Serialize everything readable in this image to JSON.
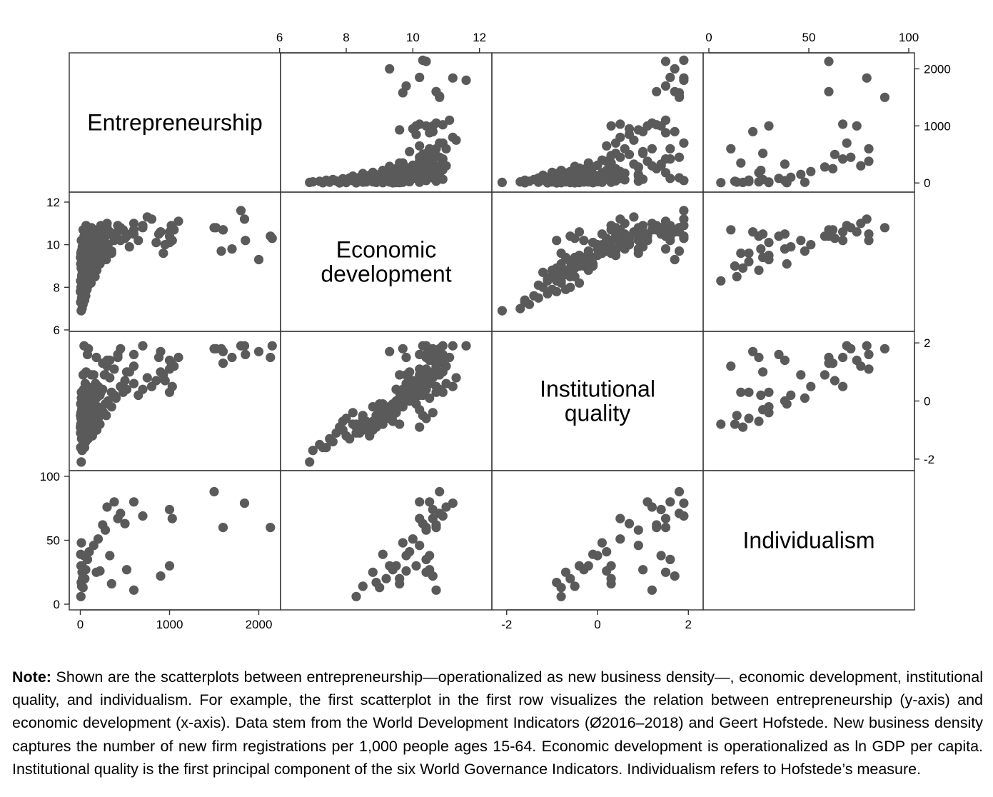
{
  "chart_data": {
    "type": "scatter-matrix",
    "variables": [
      "Entrepreneurship",
      "Economic development",
      "Institutional quality",
      "Individualism"
    ],
    "diagonal_labels": [
      [
        "Entrepreneurship"
      ],
      [
        "Economic",
        "development"
      ],
      [
        "Institutional",
        "quality"
      ],
      [
        "Individualism"
      ]
    ],
    "ranges": {
      "Entrepreneurship": [
        -60,
        2180
      ],
      "Economic development": [
        6.2,
        12.2
      ],
      "Institutional quality": [
        -2.2,
        2.2
      ],
      "Individualism": [
        0,
        100
      ]
    },
    "axes": {
      "top": [
        {
          "var": "Economic development",
          "ticks": [
            6,
            8,
            10,
            12
          ],
          "labels": [
            "6",
            "8",
            "10",
            "12"
          ]
        },
        {
          "var": "Individualism",
          "ticks": [
            0,
            50,
            100
          ],
          "labels": [
            "0",
            "50",
            "100"
          ]
        }
      ],
      "right": [
        {
          "var": "Entrepreneurship",
          "ticks": [
            0,
            1000,
            2000
          ],
          "labels": [
            "0",
            "1000",
            "2000"
          ]
        },
        {
          "var": "Institutional quality",
          "ticks": [
            -2,
            0,
            2
          ],
          "labels": [
            "-2",
            "0",
            "2"
          ]
        }
      ],
      "left": [
        {
          "var": "Economic development",
          "ticks": [
            6,
            8,
            10,
            12
          ],
          "labels": [
            "6",
            "8",
            "10",
            "12"
          ]
        },
        {
          "var": "Individualism",
          "ticks": [
            0,
            50,
            100
          ],
          "labels": [
            "0",
            "50",
            "100"
          ]
        }
      ],
      "bottom": [
        {
          "var": "Entrepreneurship",
          "ticks": [
            0,
            1000,
            2000
          ],
          "labels": [
            "0",
            "1000",
            "2000"
          ]
        },
        {
          "var": "Institutional quality",
          "ticks": [
            -2,
            0,
            2
          ],
          "labels": [
            "-2",
            "0",
            "2"
          ]
        }
      ]
    },
    "observations": [
      [
        2150,
        10.3,
        1.9,
        null
      ],
      [
        2000,
        9.3,
        1.7,
        null
      ],
      [
        1850,
        10.2,
        1.6,
        null
      ],
      [
        1800,
        11.6,
        1.9,
        null
      ],
      [
        1700,
        9.8,
        1.5,
        null
      ],
      [
        1600,
        10.7,
        1.7,
        null
      ],
      [
        1580,
        9.7,
        1.8,
        null
      ],
      [
        1520,
        10.8,
        1.8,
        null
      ],
      [
        1100,
        11.1,
        1.5,
        null
      ],
      [
        1050,
        10.7,
        1.2,
        null
      ],
      [
        1020,
        10.9,
        1.3,
        null
      ],
      [
        1000,
        10.4,
        1.1,
        null
      ],
      [
        950,
        10.0,
        0.7,
        null
      ],
      [
        930,
        9.6,
        0.9,
        null
      ],
      [
        900,
        10.6,
        1.0,
        null
      ],
      [
        880,
        10.5,
        1.5,
        null
      ],
      [
        850,
        10.1,
        0.7,
        null
      ],
      [
        800,
        11.2,
        0.5,
        null
      ],
      [
        750,
        11.3,
        0.8,
        null
      ],
      [
        700,
        10.8,
        0.4,
        null
      ],
      [
        650,
        10.2,
        0.2,
        null
      ],
      [
        600,
        11.0,
        0.6,
        null
      ],
      [
        550,
        9.9,
        1.0,
        null
      ],
      [
        520,
        10.4,
        0.4,
        null
      ],
      [
        480,
        10.7,
        0.3,
        null
      ],
      [
        450,
        10.2,
        0.5,
        null
      ],
      [
        420,
        10.9,
        1.6,
        null
      ],
      [
        400,
        10.5,
        0.1,
        null
      ],
      [
        380,
        10.3,
        0.2,
        null
      ],
      [
        350,
        9.7,
        -0.2,
        null
      ],
      [
        330,
        10.6,
        0.8,
        null
      ],
      [
        310,
        10.0,
        0.0,
        null
      ],
      [
        300,
        10.8,
        1.4,
        null
      ],
      [
        290,
        9.3,
        -0.5,
        null
      ],
      [
        280,
        10.1,
        -0.1,
        null
      ],
      [
        270,
        9.8,
        0.9,
        null
      ],
      [
        260,
        10.6,
        -0.4,
        null
      ],
      [
        250,
        9.5,
        0.4,
        null
      ],
      [
        240,
        10.2,
        -0.3,
        null
      ],
      [
        230,
        10.9,
        0.3,
        null
      ],
      [
        220,
        9.1,
        -0.8,
        null
      ],
      [
        210,
        9.9,
        0.2,
        null
      ],
      [
        200,
        10.4,
        -0.6,
        null
      ],
      [
        195,
        9.6,
        -0.2,
        null
      ],
      [
        190,
        10.7,
        0.5,
        null
      ],
      [
        185,
        8.8,
        -1.0,
        null
      ],
      [
        180,
        10.0,
        0.1,
        null
      ],
      [
        175,
        9.4,
        -0.7,
        null
      ],
      [
        170,
        10.5,
        0.6,
        null
      ],
      [
        165,
        8.5,
        -0.9,
        null
      ],
      [
        160,
        9.2,
        -0.4,
        null
      ],
      [
        155,
        10.1,
        -0.1,
        null
      ],
      [
        150,
        9.0,
        -0.3,
        null
      ],
      [
        145,
        9.7,
        0.4,
        null
      ],
      [
        140,
        10.3,
        -0.5,
        null
      ],
      [
        135,
        8.7,
        -1.2,
        null
      ],
      [
        130,
        9.5,
        0.0,
        null
      ],
      [
        125,
        10.8,
        0.9,
        null
      ],
      [
        120,
        8.2,
        -0.8,
        null
      ],
      [
        115,
        9.3,
        -0.2,
        null
      ],
      [
        110,
        9.9,
        0.3,
        null
      ],
      [
        105,
        8.9,
        -0.6,
        null
      ],
      [
        100,
        10.2,
        -0.9,
        null
      ],
      [
        98,
        8.4,
        -1.1,
        null
      ],
      [
        95,
        9.6,
        0.1,
        null
      ],
      [
        92,
        9.0,
        -0.4,
        null
      ],
      [
        90,
        10.6,
        1.8,
        null
      ],
      [
        88,
        8.1,
        -1.3,
        null
      ],
      [
        85,
        9.4,
        -0.1,
        null
      ],
      [
        82,
        8.6,
        -0.7,
        null
      ],
      [
        80,
        10.0,
        0.5,
        null
      ],
      [
        78,
        9.1,
        -0.5,
        null
      ],
      [
        75,
        7.9,
        -1.0,
        null
      ],
      [
        72,
        8.8,
        -0.2,
        null
      ],
      [
        70,
        9.7,
        0.2,
        null
      ],
      [
        68,
        8.3,
        -0.9,
        null
      ],
      [
        65,
        10.9,
        1.0,
        null
      ],
      [
        62,
        9.2,
        -0.3,
        null
      ],
      [
        60,
        7.6,
        -1.4,
        null
      ],
      [
        58,
        8.5,
        -0.6,
        null
      ],
      [
        55,
        9.8,
        0.6,
        null
      ],
      [
        52,
        8.0,
        -1.2,
        null
      ],
      [
        50,
        9.0,
        -0.1,
        null
      ],
      [
        48,
        7.4,
        -1.6,
        null
      ],
      [
        45,
        8.7,
        -0.8,
        null
      ],
      [
        42,
        10.4,
        1.9,
        null
      ],
      [
        40,
        8.2,
        -0.4,
        null
      ],
      [
        38,
        9.5,
        0.4,
        null
      ],
      [
        36,
        7.7,
        -1.1,
        null
      ],
      [
        34,
        8.9,
        -0.5,
        null
      ],
      [
        32,
        10.7,
        0.9,
        null
      ],
      [
        30,
        7.2,
        -1.5,
        null
      ],
      [
        28,
        8.4,
        -0.9,
        null
      ],
      [
        26,
        9.3,
        -0.2,
        null
      ],
      [
        24,
        7.9,
        -0.7,
        null
      ],
      [
        22,
        9.9,
        0.0,
        null
      ],
      [
        20,
        7.0,
        -1.7,
        null
      ],
      [
        18,
        8.6,
        -1.0,
        null
      ],
      [
        16,
        9.1,
        -0.3,
        null
      ],
      [
        14,
        7.5,
        -1.3,
        null
      ],
      [
        12,
        10.2,
        0.3,
        null
      ],
      [
        10,
        6.9,
        -2.1,
        null
      ],
      [
        8,
        8.0,
        -0.6,
        null
      ],
      [
        6,
        9.6,
        -0.8,
        null
      ],
      [
        4,
        7.3,
        -1.6,
        null
      ],
      [
        3,
        8.3,
        -1.1,
        null
      ],
      [
        2,
        9.4,
        -0.5,
        null
      ],
      [
        1,
        7.8,
        -0.9,
        null
      ],
      [
        1500,
        10.8,
        1.8,
        88
      ],
      [
        1600,
        10.7,
        1.3,
        60
      ],
      [
        2130,
        10.4,
        1.5,
        60
      ],
      [
        1840,
        11.2,
        1.9,
        79
      ],
      [
        1000,
        10.6,
        1.4,
        74
      ],
      [
        1030,
        10.2,
        0.5,
        67
      ],
      [
        700,
        10.9,
        1.9,
        69
      ],
      [
        600,
        10.5,
        1.6,
        80
      ],
      [
        500,
        10.3,
        0.7,
        63
      ],
      [
        450,
        10.8,
        1.8,
        71
      ],
      [
        420,
        10.6,
        1.5,
        67
      ],
      [
        380,
        10.2,
        1.1,
        80
      ],
      [
        300,
        11.0,
        1.2,
        76
      ],
      [
        280,
        10.4,
        0.9,
        58
      ],
      [
        250,
        10.7,
        1.3,
        62
      ],
      [
        200,
        10.0,
        0.5,
        51
      ],
      [
        150,
        10.2,
        0.9,
        46
      ],
      [
        100,
        9.9,
        0.2,
        41
      ],
      [
        80,
        10.4,
        1.6,
        35
      ],
      [
        60,
        9.4,
        -0.3,
        27
      ],
      [
        50,
        9.2,
        -0.6,
        20
      ],
      [
        40,
        9.8,
        0.0,
        38
      ],
      [
        30,
        9.0,
        -0.8,
        13
      ],
      [
        25,
        9.6,
        0.3,
        20
      ],
      [
        20,
        8.8,
        -0.7,
        25
      ],
      [
        18,
        9.3,
        -0.2,
        30
      ],
      [
        15,
        8.5,
        -0.5,
        14
      ],
      [
        12,
        9.7,
        0.1,
        48
      ],
      [
        10,
        8.9,
        -0.9,
        17
      ],
      [
        8,
        9.5,
        -0.4,
        30
      ],
      [
        6,
        8.3,
        -0.8,
        6
      ],
      [
        5,
        9.1,
        -0.1,
        39
      ],
      [
        1000,
        10.1,
        0.3,
        30
      ],
      [
        900,
        10.6,
        1.7,
        22
      ],
      [
        600,
        10.7,
        1.2,
        11
      ],
      [
        520,
        10.5,
        1.0,
        27
      ],
      [
        350,
        9.6,
        0.3,
        16
      ],
      [
        330,
        10.5,
        1.4,
        38
      ],
      [
        220,
        9.8,
        0.2,
        26
      ],
      [
        180,
        10.4,
        1.5,
        25
      ]
    ]
  },
  "note": {
    "label": "Note:",
    "text": " Shown are the scatterplots between entrepreneurship—operationalized as new business density—, economic development, institutional quality, and individualism. For example, the first scatterplot in the first row visualizes the relation between entrepreneurship (y-axis) and economic development (x-axis). Data stem from the World Development Indicators (Ø2016–2018) and Geert Hofstede. New business density captures the number of new firm registrations per 1,000 people ages 15-64. Economic development is operationalized as ln GDP per capita. Institutional quality is the first principal component of the six World Governance Indicators. Individualism refers to Hofstede’s measure."
  }
}
